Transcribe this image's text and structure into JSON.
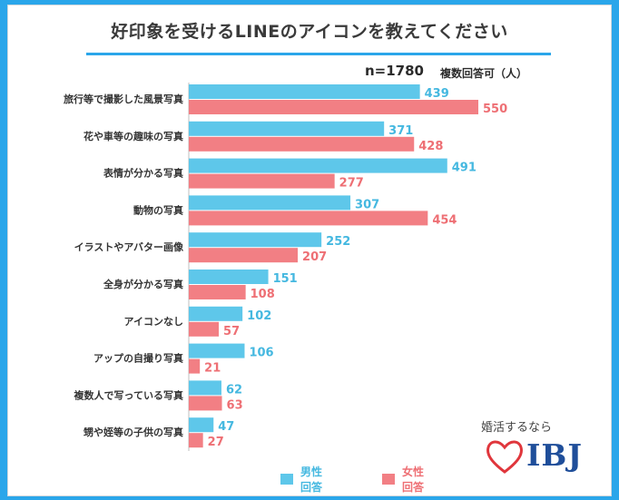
{
  "title": "好印象を受けるLINEのアイコンを教えてください",
  "sample": "n=1780",
  "note": "複数回答可（人）",
  "legend": {
    "male": "男性回答",
    "female": "女性回答"
  },
  "colors": {
    "male": "#5ec7ea",
    "female": "#f27f84",
    "accent": "#2aa6ea",
    "logo_heart": "#e0363c",
    "logo_text": "#1f4e9a"
  },
  "logo": {
    "tagline": "婚活するなら",
    "word": "IBJ"
  },
  "chart_data": {
    "type": "bar",
    "orientation": "horizontal",
    "categories": [
      "旅行等で撮影した風景写真",
      "花や車等の趣味の写真",
      "表情が分かる写真",
      "動物の写真",
      "イラストやアバター画像",
      "全身が分かる写真",
      "アイコンなし",
      "アップの自撮り写真",
      "複数人で写っている写真",
      "甥や姪等の子供の写真"
    ],
    "series": [
      {
        "name": "男性回答",
        "values": [
          439,
          371,
          491,
          307,
          252,
          151,
          102,
          106,
          62,
          47
        ]
      },
      {
        "name": "女性回答",
        "values": [
          550,
          428,
          277,
          454,
          207,
          108,
          57,
          21,
          63,
          27
        ]
      }
    ],
    "grid": false,
    "legend_position": "bottom"
  }
}
